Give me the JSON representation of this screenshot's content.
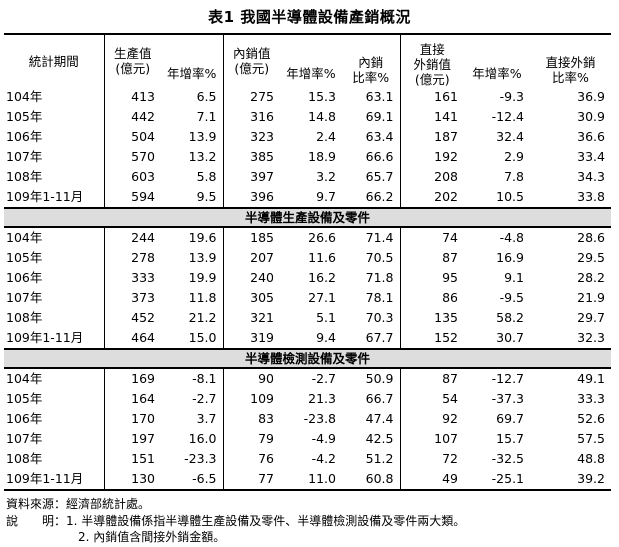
{
  "title": "表1  我國半導體設備產銷概況",
  "headers": {
    "period": "統計期間",
    "production": "生產值\n(億元)",
    "growth": "年增率%",
    "domestic_sales": "內銷值\n(億元)",
    "domestic_ratio": "內銷\n比率%",
    "direct_export_group": "直接",
    "direct_export": "外銷值\n(億元)",
    "direct_export_ratio": "直接外銷\n比率%"
  },
  "sections": [
    {
      "label": "",
      "rows": [
        [
          "104年",
          "413",
          "6.5",
          "275",
          "15.3",
          "63.1",
          "161",
          "-9.3",
          "36.9"
        ],
        [
          "105年",
          "442",
          "7.1",
          "316",
          "14.8",
          "69.1",
          "141",
          "-12.4",
          "30.9"
        ],
        [
          "106年",
          "504",
          "13.9",
          "323",
          "2.4",
          "63.4",
          "187",
          "32.4",
          "36.6"
        ],
        [
          "107年",
          "570",
          "13.2",
          "385",
          "18.9",
          "66.6",
          "192",
          "2.9",
          "33.4"
        ],
        [
          "108年",
          "603",
          "5.8",
          "397",
          "3.2",
          "65.7",
          "208",
          "7.8",
          "34.3"
        ],
        [
          "109年1-11月",
          "594",
          "9.5",
          "396",
          "9.7",
          "66.2",
          "202",
          "10.5",
          "33.8"
        ]
      ]
    },
    {
      "label": "半導體生產設備及零件",
      "rows": [
        [
          "104年",
          "244",
          "19.6",
          "185",
          "26.6",
          "71.4",
          "74",
          "-4.8",
          "28.6"
        ],
        [
          "105年",
          "278",
          "13.9",
          "207",
          "11.6",
          "70.5",
          "87",
          "16.9",
          "29.5"
        ],
        [
          "106年",
          "333",
          "19.9",
          "240",
          "16.2",
          "71.8",
          "95",
          "9.1",
          "28.2"
        ],
        [
          "107年",
          "373",
          "11.8",
          "305",
          "27.1",
          "78.1",
          "86",
          "-9.5",
          "21.9"
        ],
        [
          "108年",
          "452",
          "21.2",
          "321",
          "5.1",
          "70.3",
          "135",
          "58.2",
          "29.7"
        ],
        [
          "109年1-11月",
          "464",
          "15.0",
          "319",
          "9.4",
          "67.7",
          "152",
          "30.7",
          "32.3"
        ]
      ]
    },
    {
      "label": "半導體檢測設備及零件",
      "rows": [
        [
          "104年",
          "169",
          "-8.1",
          "90",
          "-2.7",
          "50.9",
          "87",
          "-12.7",
          "49.1"
        ],
        [
          "105年",
          "164",
          "-2.7",
          "109",
          "21.3",
          "66.7",
          "54",
          "-37.3",
          "33.3"
        ],
        [
          "106年",
          "170",
          "3.7",
          "83",
          "-23.8",
          "47.4",
          "92",
          "69.7",
          "52.6"
        ],
        [
          "107年",
          "197",
          "16.0",
          "79",
          "-4.9",
          "42.5",
          "107",
          "15.7",
          "57.5"
        ],
        [
          "108年",
          "151",
          "-23.3",
          "76",
          "-4.2",
          "51.2",
          "72",
          "-32.5",
          "48.8"
        ],
        [
          "109年1-11月",
          "130",
          "-6.5",
          "77",
          "11.0",
          "60.8",
          "49",
          "-25.1",
          "39.2"
        ]
      ]
    }
  ],
  "notes": {
    "source": "資料來源：經濟部統計處。",
    "note1": "說　　明：1. 半導體設備係指半導體生產設備及零件、半導體檢測設備及零件兩大類。",
    "note2": "2. 內銷值含間接外銷金額。"
  }
}
